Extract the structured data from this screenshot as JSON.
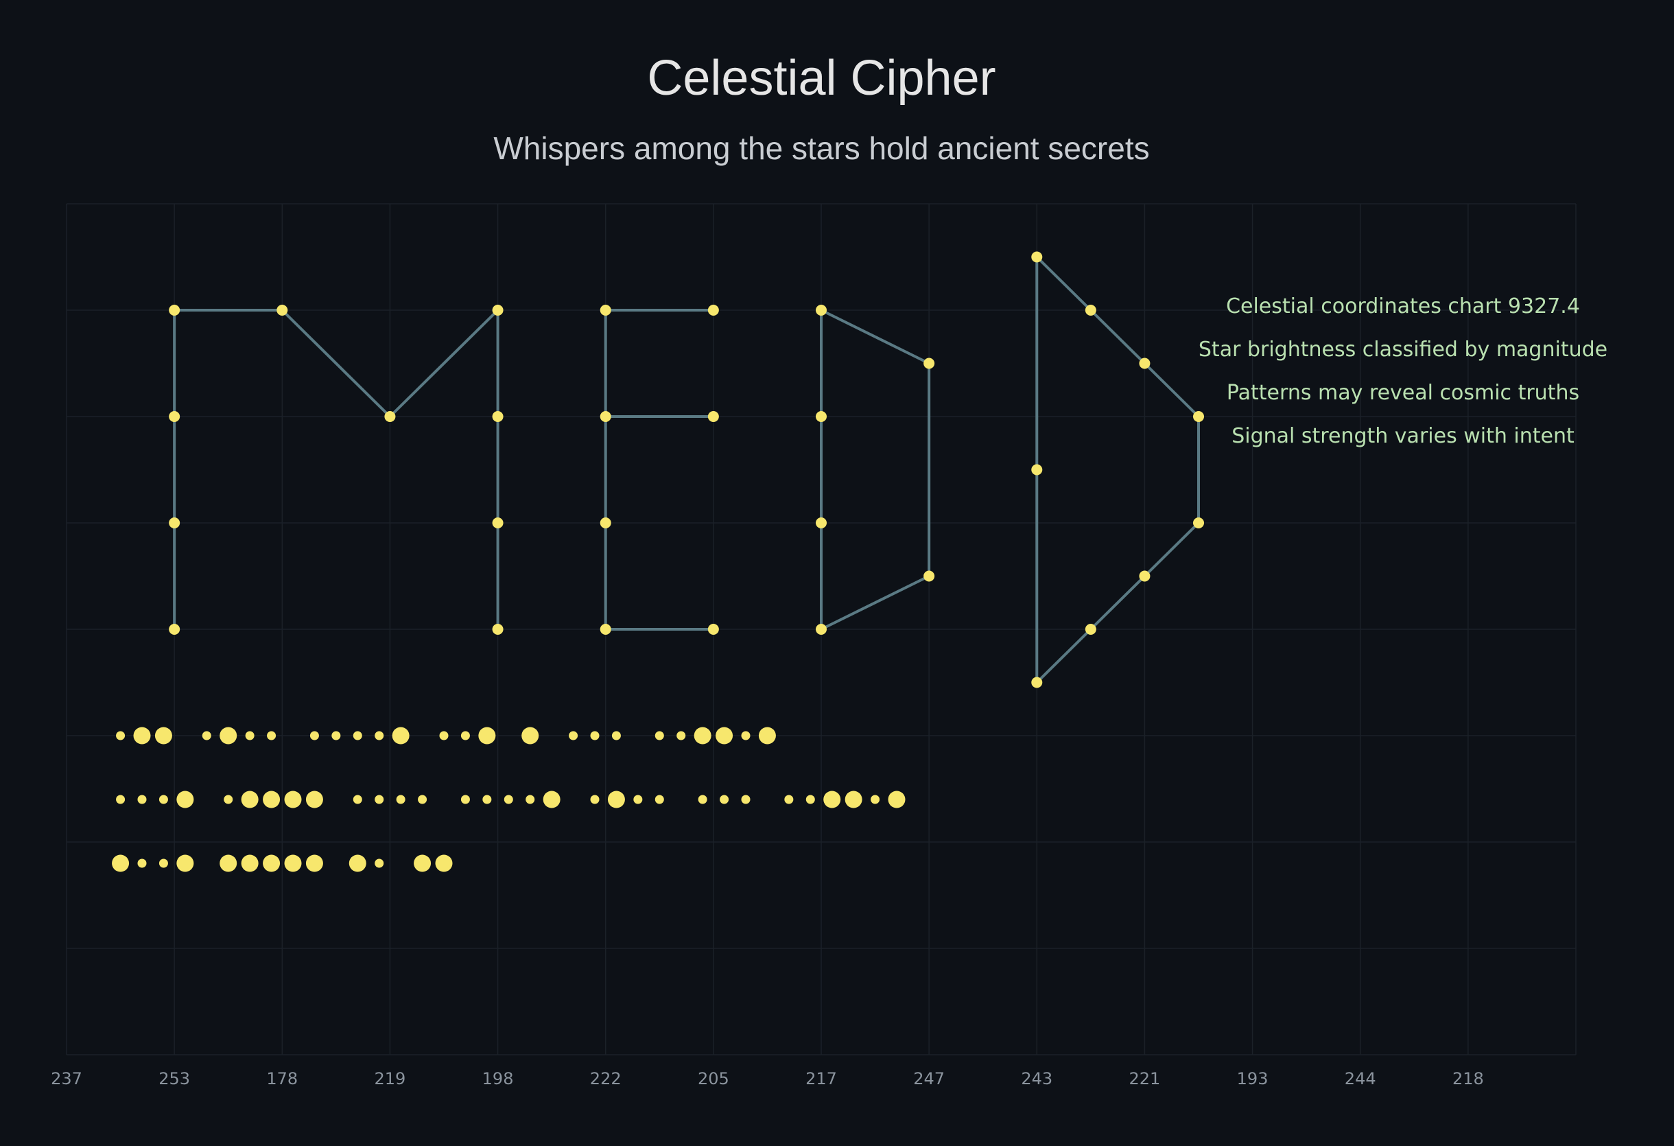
{
  "title": "Celestial Cipher",
  "subtitle": "Whispers among the stars hold ancient secrets",
  "colors": {
    "background": "#0d1117",
    "grid": "#1b2128",
    "line": "#5a7a84",
    "star": "#f7e76d",
    "note": "#b9e0b0",
    "tick": "#8b949e"
  },
  "chart_data": {
    "type": "scatter",
    "grid": true,
    "x_tick_labels": [
      "237",
      "253",
      "178",
      "219",
      "198",
      "222",
      "205",
      "217",
      "247",
      "243",
      "221",
      "193",
      "244",
      "218"
    ],
    "xlim": [
      0,
      14
    ],
    "ylim": [
      0,
      8
    ],
    "annotations": [
      "Celestial coordinates chart 9327.4",
      "Star brightness classified by magnitude",
      "Patterns may reveal cosmic truths",
      "Signal strength varies with intent"
    ],
    "constellations": [
      {
        "points": [
          [
            1,
            4
          ],
          [
            1,
            5
          ],
          [
            1,
            6
          ],
          [
            1,
            7
          ],
          [
            2,
            7
          ],
          [
            3,
            6
          ],
          [
            4,
            7
          ],
          [
            4,
            6
          ],
          [
            4,
            5
          ],
          [
            4,
            4
          ]
        ]
      },
      {
        "points": [
          [
            6,
            4
          ],
          [
            5,
            4
          ],
          [
            5,
            5
          ],
          [
            5,
            6
          ],
          [
            5,
            7
          ],
          [
            6,
            7
          ]
        ]
      },
      {
        "points": [
          [
            5,
            6
          ],
          [
            6,
            6
          ]
        ]
      },
      {
        "points": [
          [
            7,
            4
          ],
          [
            7,
            5
          ],
          [
            7,
            6
          ],
          [
            7,
            7
          ],
          [
            8,
            6.5
          ],
          [
            8,
            4.5
          ],
          [
            7,
            4
          ]
        ]
      },
      {
        "points": [
          [
            9,
            3.5
          ],
          [
            9,
            5.5
          ],
          [
            9,
            7.5
          ],
          [
            9.5,
            7
          ],
          [
            10,
            6.5
          ],
          [
            10.5,
            6
          ],
          [
            10.5,
            5
          ],
          [
            10,
            4.5
          ],
          [
            9.5,
            4
          ],
          [
            9,
            3.5
          ]
        ]
      }
    ],
    "star_rows": [
      {
        "y": 3,
        "sizes": [
          1,
          2,
          2,
          0,
          1,
          2,
          1,
          1,
          0,
          1,
          1,
          1,
          1,
          2,
          0,
          1,
          1,
          2,
          0,
          2,
          0,
          1,
          1,
          1,
          0,
          1,
          1,
          2,
          2,
          1,
          2
        ]
      },
      {
        "y": 2.4,
        "sizes": [
          1,
          1,
          1,
          2,
          0,
          1,
          2,
          2,
          2,
          2,
          0,
          1,
          1,
          1,
          1,
          0,
          1,
          1,
          1,
          1,
          2,
          0,
          1,
          2,
          1,
          1,
          0,
          1,
          1,
          1,
          0,
          1,
          1,
          2,
          2,
          1,
          2
        ]
      },
      {
        "y": 1.8,
        "sizes": [
          2,
          1,
          1,
          2,
          0,
          2,
          2,
          2,
          2,
          2,
          0,
          2,
          1,
          0,
          2,
          2
        ]
      }
    ]
  }
}
